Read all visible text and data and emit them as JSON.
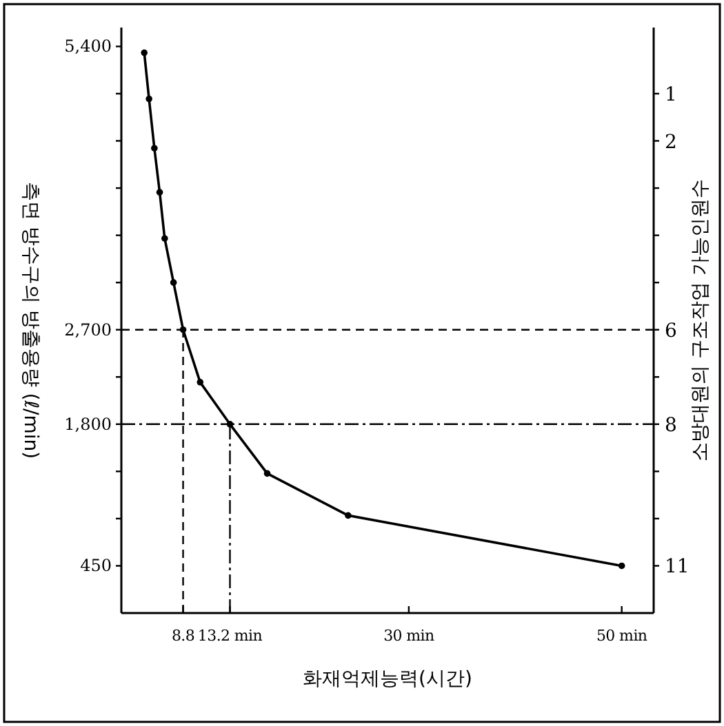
{
  "chart_data": {
    "type": "line",
    "xlabel": "화재억제능력(시간)",
    "ylabel": "측면 방수구의 방출용량 (ℓ/min)",
    "y2label": "소방대원의 구조작업 가능인원수",
    "x": [
      5.15,
      5.6,
      6.1,
      6.6,
      7.07,
      7.9,
      8.8,
      10.4,
      13.2,
      16.7,
      24.3,
      50
    ],
    "series": [
      {
        "color": "#000000",
        "values": [
          5340,
          4900,
          4430,
          4010,
          3570,
          3150,
          2700,
          2200,
          1800,
          1330,
          930,
          450
        ]
      }
    ],
    "xlim": [
      3,
      53
    ],
    "xticks": [
      {
        "value": 8.8,
        "label": "8.8"
      },
      {
        "value": 13.2,
        "label": "13.2 min"
      },
      {
        "value": 30,
        "label": "30 min"
      },
      {
        "value": 50,
        "label": "50 min"
      }
    ],
    "ylim": [
      0,
      5580
    ],
    "yticks": [
      {
        "value": 450,
        "label": "450"
      },
      {
        "value": 900,
        "label": null
      },
      {
        "value": 1350,
        "label": null
      },
      {
        "value": 1800,
        "label": "1,800"
      },
      {
        "value": 2250,
        "label": null
      },
      {
        "value": 2700,
        "label": "2,700"
      },
      {
        "value": 3150,
        "label": null
      },
      {
        "value": 3600,
        "label": null
      },
      {
        "value": 4050,
        "label": null
      },
      {
        "value": 4500,
        "label": null
      },
      {
        "value": 4950,
        "label": null
      },
      {
        "value": 5400,
        "label": "5,400"
      }
    ],
    "y2lim": [
      12,
      -0.4
    ],
    "y2ticks": [
      1,
      2,
      {
        "value": 3,
        "label": null
      },
      {
        "value": 4,
        "label": null
      },
      {
        "value": 5,
        "label": null
      },
      6,
      {
        "value": 7,
        "label": null
      },
      8,
      {
        "value": 9,
        "label": null
      },
      {
        "value": 10,
        "label": null
      },
      11
    ],
    "ref_lines": [
      {
        "axis": "y",
        "value": 2700,
        "line_style": "dashed"
      },
      {
        "axis": "y",
        "value": 1800,
        "line_style": "dashdot"
      },
      {
        "axis": "x",
        "value": 8.8,
        "line_style": "dashed"
      },
      {
        "axis": "x",
        "value": 13.2,
        "line_style": "dashdot"
      }
    ],
    "marker": "circle",
    "line_style": "solid"
  }
}
